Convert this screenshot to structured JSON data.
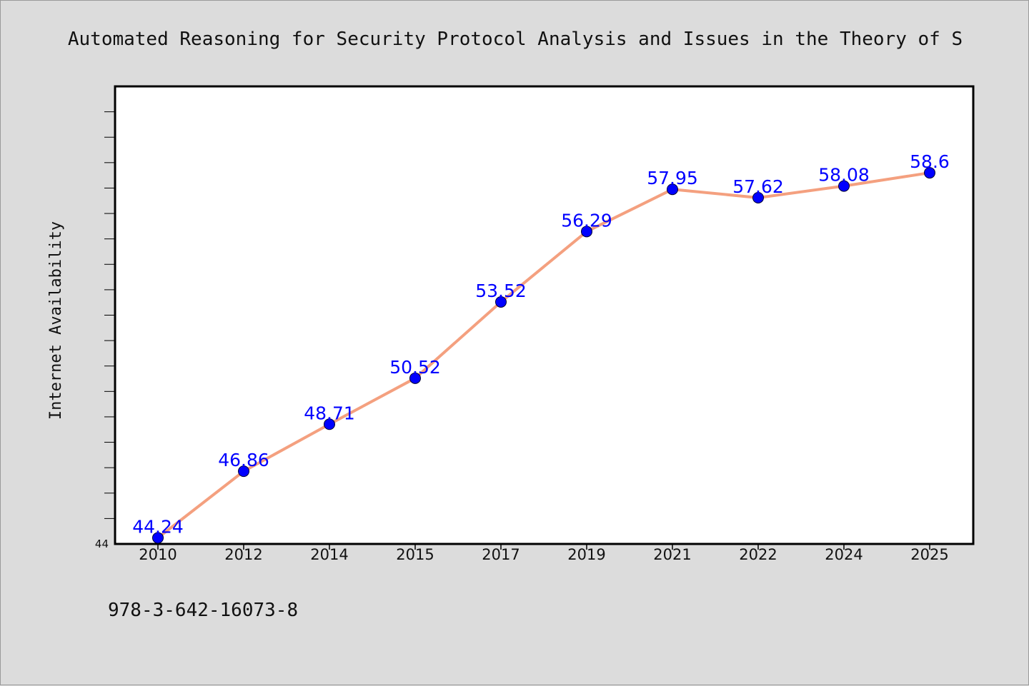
{
  "colors": {
    "background": "#dcdcdc",
    "plot_background": "#ffffff",
    "line": "#f4a07f",
    "marker": "#0000ff",
    "data_label": "#0000ff"
  },
  "footnote": "978-3-642-16073-8",
  "chart_data": {
    "type": "line",
    "title": "Automated Reasoning for Security Protocol Analysis and Issues in the Theory of S",
    "xlabel": "",
    "ylabel": "Internet Availability",
    "categories": [
      "2010",
      "2012",
      "2014",
      "2015",
      "2017",
      "2019",
      "2021",
      "2022",
      "2024",
      "2025"
    ],
    "series": [
      {
        "values": [
          44.24,
          46.86,
          48.71,
          50.52,
          53.52,
          56.29,
          57.95,
          57.62,
          58.08,
          58.6
        ],
        "labels": [
          "44.24",
          "46.86",
          "48.71",
          "50.52",
          "53.52",
          "56.29",
          "57.95",
          "57.62",
          "58.08",
          "58.6"
        ]
      }
    ],
    "ylim": [
      44,
      62
    ],
    "y_tick_labels": [
      "44"
    ],
    "grid": false,
    "legend": "none"
  }
}
